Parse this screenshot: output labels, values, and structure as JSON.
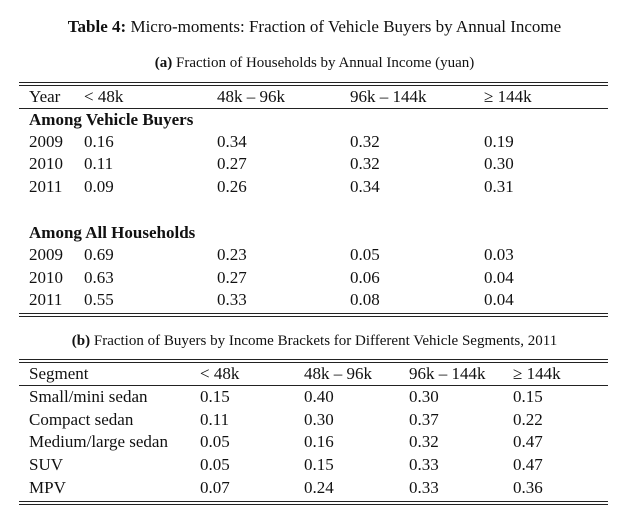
{
  "caption": {
    "label": "Table 4:",
    "text": "Micro-moments: Fraction of Vehicle Buyers by Annual Income"
  },
  "panel_a": {
    "label": "(a)",
    "title": "Fraction of Households by Annual Income (yuan)",
    "headers": [
      "Year",
      "< 48k",
      "48k – 96k",
      "96k – 144k",
      "≥ 144k"
    ],
    "groups": [
      {
        "name": "Among Vehicle Buyers",
        "rows": [
          [
            "2009",
            "0.16",
            "0.34",
            "0.32",
            "0.19"
          ],
          [
            "2010",
            "0.11",
            "0.27",
            "0.32",
            "0.30"
          ],
          [
            "2011",
            "0.09",
            "0.26",
            "0.34",
            "0.31"
          ]
        ]
      },
      {
        "name": "Among All Households",
        "rows": [
          [
            "2009",
            "0.69",
            "0.23",
            "0.05",
            "0.03"
          ],
          [
            "2010",
            "0.63",
            "0.27",
            "0.06",
            "0.04"
          ],
          [
            "2011",
            "0.55",
            "0.33",
            "0.08",
            "0.04"
          ]
        ]
      }
    ]
  },
  "panel_b": {
    "label": "(b)",
    "title": "Fraction of Buyers by Income Brackets for Different Vehicle Segments, 2011",
    "headers": [
      "Segment",
      "< 48k",
      "48k – 96k",
      "96k – 144k",
      "≥ 144k"
    ],
    "rows": [
      [
        "Small/mini sedan",
        "0.15",
        "0.40",
        "0.30",
        "0.15"
      ],
      [
        "Compact sedan",
        "0.11",
        "0.30",
        "0.37",
        "0.22"
      ],
      [
        "Medium/large sedan",
        "0.05",
        "0.16",
        "0.32",
        "0.47"
      ],
      [
        "SUV",
        "0.05",
        "0.15",
        "0.33",
        "0.47"
      ],
      [
        "MPV",
        "0.07",
        "0.24",
        "0.33",
        "0.36"
      ]
    ]
  }
}
